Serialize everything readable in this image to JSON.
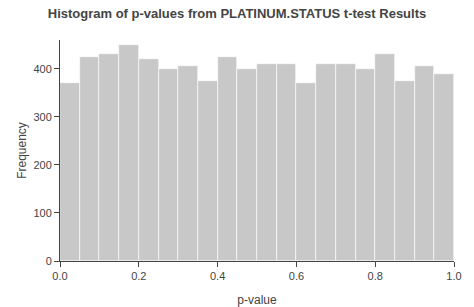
{
  "chart_data": {
    "type": "histogram",
    "title": "Histogram of p-values from PLATINUM.STATUS t-test Results",
    "xlabel": "p-value",
    "ylabel": "Frequency",
    "bins": [
      0.0,
      0.05,
      0.1,
      0.15,
      0.2,
      0.25,
      0.3,
      0.35,
      0.4,
      0.45,
      0.5,
      0.55,
      0.6,
      0.65,
      0.7,
      0.75,
      0.8,
      0.85,
      0.9,
      0.95,
      1.0
    ],
    "values": [
      370,
      425,
      430,
      450,
      420,
      400,
      405,
      375,
      425,
      400,
      410,
      410,
      370,
      410,
      410,
      400,
      430,
      375,
      405,
      390
    ],
    "color": "#c8c8c8",
    "xlim": [
      0.0,
      1.0
    ],
    "xticks": [
      {
        "value": 0.0,
        "label": "0.0"
      },
      0.2,
      0.4,
      0.6,
      0.8,
      {
        "value": 1.0,
        "label": "1.0"
      }
    ],
    "ylim": [
      0,
      460
    ],
    "yticks": [
      0,
      100,
      200,
      300,
      400
    ],
    "grid": false
  }
}
